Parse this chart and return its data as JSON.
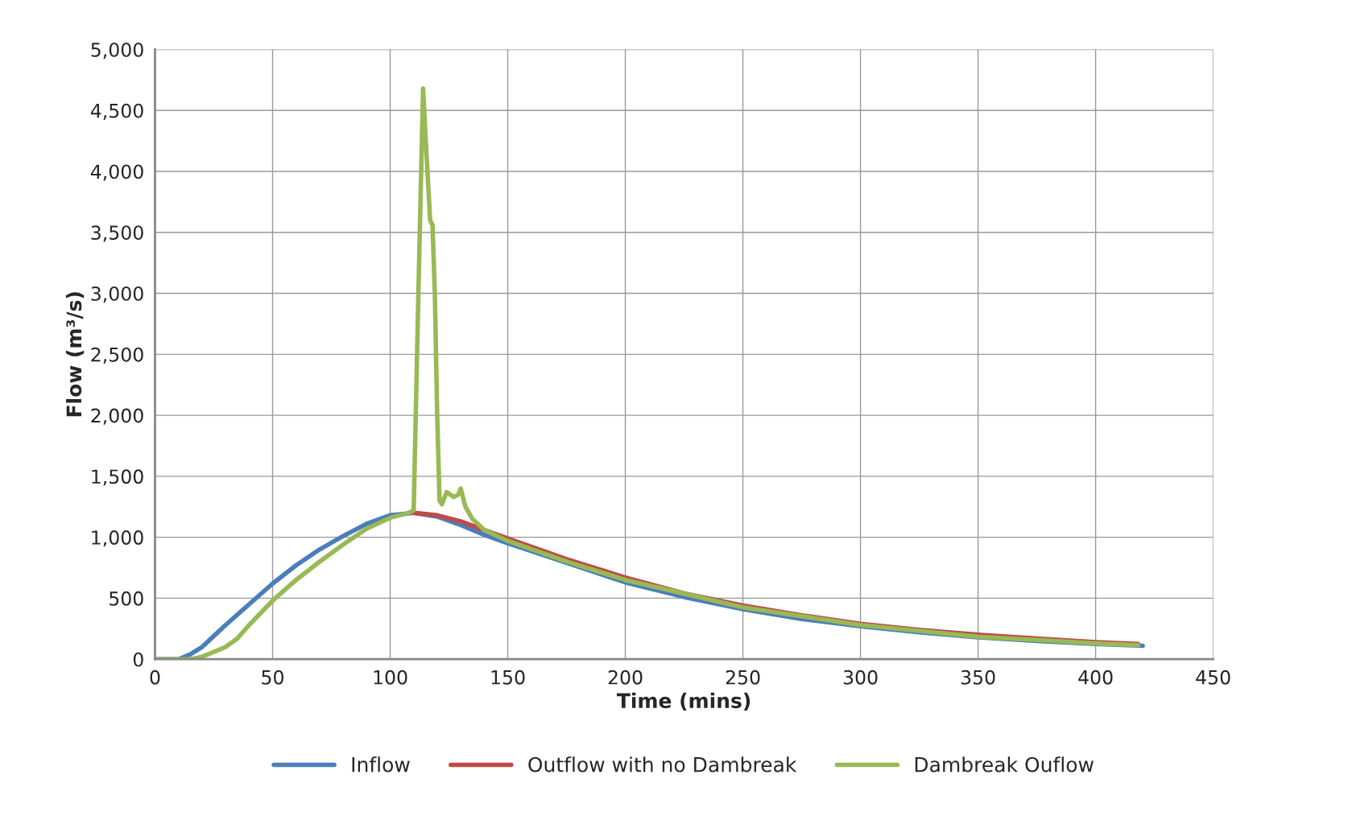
{
  "chart_data": {
    "type": "line",
    "xlabel": "Time (mins)",
    "ylabel": "Flow (m³/s)",
    "xlim": [
      0,
      450
    ],
    "xticks": [
      0,
      50,
      100,
      150,
      200,
      250,
      300,
      350,
      400,
      450
    ],
    "ylim": [
      0,
      5000
    ],
    "yticks": [
      0,
      500,
      {
        "value": 1000,
        "label": "1,000"
      },
      {
        "value": 1500,
        "label": "1,500"
      },
      {
        "value": 2000,
        "label": "2,000"
      },
      {
        "value": 2500,
        "label": "2,500"
      },
      {
        "value": 3000,
        "label": "3,000"
      },
      {
        "value": 3500,
        "label": "3,500"
      },
      {
        "value": 4000,
        "label": "4,000"
      },
      {
        "value": 4500,
        "label": "4,500"
      },
      {
        "value": 5000,
        "label": "5,000"
      }
    ],
    "grid": true,
    "legend": "bottom",
    "marker": "none",
    "line_style": "solid",
    "series": [
      {
        "name": "Inflow",
        "color": "#4a7ebb",
        "x": [
          0,
          10,
          15,
          20,
          30,
          40,
          50,
          60,
          70,
          80,
          90,
          100,
          110,
          120,
          130,
          140,
          150,
          175,
          200,
          225,
          250,
          275,
          300,
          325,
          350,
          375,
          400,
          420
        ],
        "values": [
          0,
          0,
          40,
          100,
          280,
          450,
          620,
          770,
          900,
          1010,
          1110,
          1180,
          1200,
          1170,
          1100,
          1020,
          950,
          790,
          630,
          510,
          410,
          330,
          270,
          220,
          180,
          150,
          125,
          110
        ]
      },
      {
        "name": "Outflow with no Dambreak",
        "color": "#be4b48",
        "x": [
          108,
          110,
          120,
          130,
          140,
          150,
          175,
          200,
          225,
          250,
          275,
          300,
          325,
          350,
          375,
          400,
          418
        ],
        "values": [
          1200,
          1200,
          1180,
          1130,
          1060,
          990,
          820,
          670,
          540,
          440,
          360,
          290,
          240,
          200,
          170,
          140,
          125
        ]
      },
      {
        "name": "Dambreak Ouflow",
        "color": "#98b954",
        "x": [
          0,
          15,
          20,
          30,
          35,
          40,
          50,
          60,
          70,
          80,
          90,
          100,
          108,
          110,
          112,
          114,
          115,
          117,
          118,
          119,
          120,
          121,
          122,
          124,
          127,
          129,
          130,
          132,
          135,
          140,
          150,
          175,
          200,
          250,
          300,
          350,
          400,
          418
        ],
        "values": [
          0,
          0,
          20,
          100,
          170,
          280,
          480,
          650,
          800,
          940,
          1070,
          1160,
          1200,
          1220,
          3000,
          4680,
          4300,
          3600,
          3560,
          3000,
          2000,
          1300,
          1270,
          1370,
          1330,
          1350,
          1400,
          1250,
          1150,
          1060,
          970,
          800,
          650,
          425,
          280,
          185,
          130,
          115
        ]
      }
    ]
  }
}
